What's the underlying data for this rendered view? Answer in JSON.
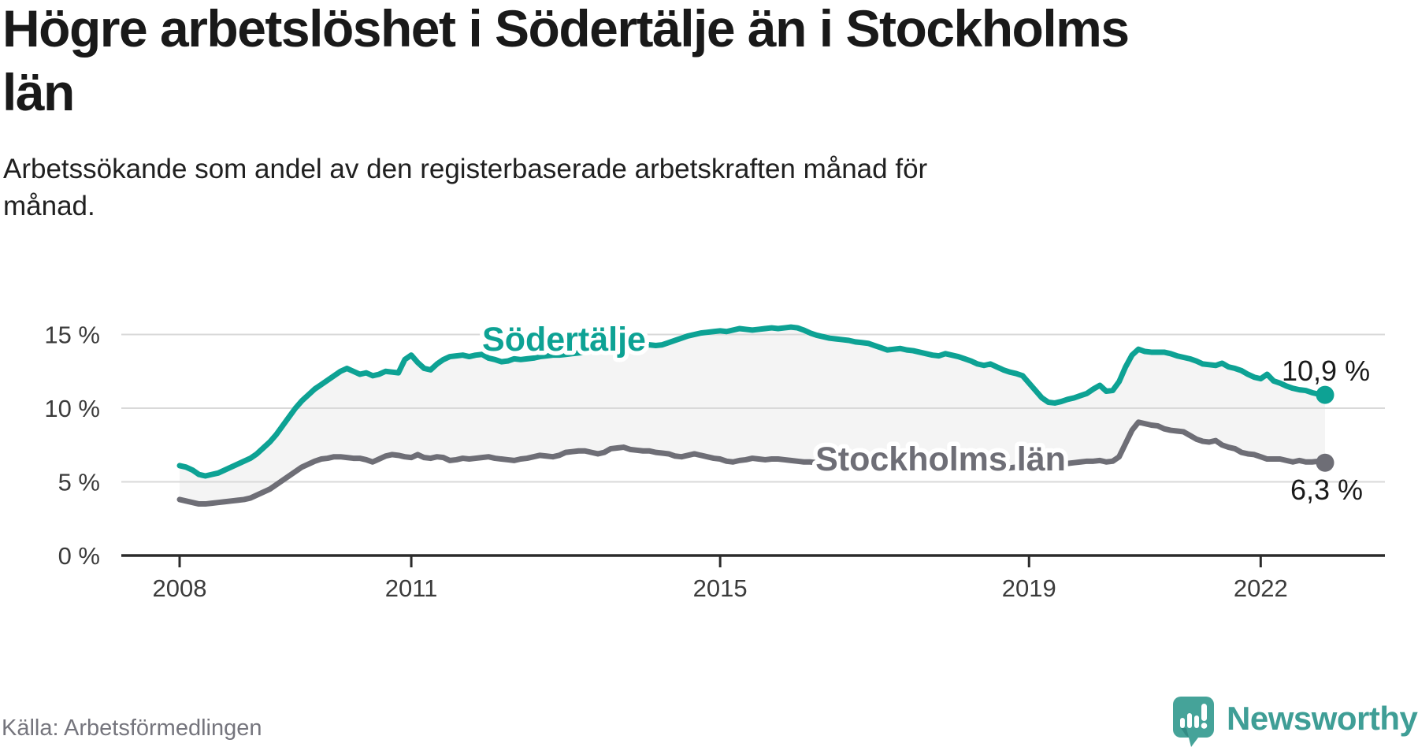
{
  "title": "Högre arbetslöshet i Södertälje än i Stockholms län",
  "title_lines": [
    "Högre arbetslöshet i Södertälje än i Stockholms",
    "län"
  ],
  "subtitle": "Arbetssökande som andel av den registerbaserade arbetskraften månad för månad.",
  "subtitle_lines": [
    "Arbetssökande som andel av den registerbaserade arbetskraften månad för",
    "månad."
  ],
  "source": "Källa: Arbetsförmedlingen",
  "logo": {
    "name": "Newsworthy",
    "icon": "newsworthy-speech-bubble-chart-icon",
    "icon_color": "#45a399",
    "text_color": "#3f9e96"
  },
  "colors": {
    "soder_teal": "#0da294",
    "sthlm_gray": "#6e6e76",
    "fill_between": "#f4f4f4",
    "gridline": "#d9d9d9",
    "axis": "#2b2b2b",
    "tick_text": "#3b3b3b",
    "value_text": "#1a1a1a"
  },
  "chart_data": {
    "type": "line",
    "title": "Högre arbetslöshet i Södertälje än i Stockholms län",
    "xlabel": "",
    "ylabel": "",
    "x_start": "2008-01",
    "x_end": "2022-11",
    "x_ticks": [
      2008,
      2011,
      2015,
      2019,
      2022
    ],
    "y_tick_values": [
      0,
      5,
      10,
      15
    ],
    "y_tick_labels": [
      "0 %",
      "5 %",
      "10 %",
      "15 %"
    ],
    "ylim": [
      0,
      16.8
    ],
    "grid": "horizontal",
    "legend_position": "inline-labels",
    "series": [
      {
        "name": "Södertälje",
        "end_label": "10,9 %",
        "end_value": 10.9,
        "values": [
          6.1,
          6.0,
          5.8,
          5.5,
          5.4,
          5.5,
          5.6,
          5.8,
          6.0,
          6.2,
          6.4,
          6.6,
          6.9,
          7.3,
          7.7,
          8.2,
          8.8,
          9.4,
          10.0,
          10.5,
          10.9,
          11.3,
          11.6,
          11.9,
          12.2,
          12.5,
          12.7,
          12.5,
          12.3,
          12.4,
          12.2,
          12.3,
          12.5,
          12.45,
          12.4,
          13.3,
          13.6,
          13.1,
          12.7,
          12.6,
          13.0,
          13.3,
          13.5,
          13.55,
          13.6,
          13.5,
          13.6,
          13.65,
          13.4,
          13.3,
          13.15,
          13.2,
          13.35,
          13.3,
          13.35,
          13.4,
          13.5,
          13.55,
          13.6,
          13.6,
          13.65,
          13.7,
          13.75,
          13.8,
          13.85,
          13.85,
          13.95,
          14.0,
          14.1,
          14.2,
          14.25,
          14.3,
          14.35,
          14.3,
          14.25,
          14.3,
          14.45,
          14.6,
          14.75,
          14.9,
          15.0,
          15.1,
          15.15,
          15.2,
          15.25,
          15.2,
          15.3,
          15.4,
          15.35,
          15.3,
          15.35,
          15.4,
          15.45,
          15.4,
          15.45,
          15.5,
          15.45,
          15.3,
          15.1,
          14.95,
          14.85,
          14.75,
          14.7,
          14.65,
          14.6,
          14.5,
          14.45,
          14.4,
          14.25,
          14.1,
          13.95,
          14.0,
          14.05,
          13.95,
          13.9,
          13.8,
          13.7,
          13.6,
          13.55,
          13.7,
          13.6,
          13.5,
          13.35,
          13.2,
          13.0,
          12.9,
          13.0,
          12.8,
          12.6,
          12.45,
          12.35,
          12.2,
          11.7,
          11.2,
          10.7,
          10.4,
          10.35,
          10.45,
          10.6,
          10.7,
          10.85,
          11.0,
          11.3,
          11.55,
          11.15,
          11.2,
          11.8,
          12.8,
          13.6,
          14.0,
          13.85,
          13.8,
          13.8,
          13.8,
          13.7,
          13.55,
          13.45,
          13.35,
          13.2,
          13.0,
          12.95,
          12.9,
          13.05,
          12.8,
          12.7,
          12.55,
          12.3,
          12.1,
          12.0,
          12.3,
          11.85,
          11.7,
          11.5,
          11.35,
          11.25,
          11.2,
          11.05,
          10.95,
          10.9
        ]
      },
      {
        "name": "Stockholms län",
        "end_label": "6,3 %",
        "end_value": 6.3,
        "values": [
          3.8,
          3.7,
          3.6,
          3.5,
          3.5,
          3.55,
          3.6,
          3.65,
          3.7,
          3.75,
          3.8,
          3.9,
          4.1,
          4.3,
          4.5,
          4.8,
          5.1,
          5.4,
          5.7,
          6.0,
          6.2,
          6.4,
          6.55,
          6.6,
          6.7,
          6.7,
          6.65,
          6.6,
          6.6,
          6.5,
          6.35,
          6.55,
          6.75,
          6.85,
          6.8,
          6.7,
          6.65,
          6.85,
          6.65,
          6.6,
          6.7,
          6.65,
          6.45,
          6.5,
          6.6,
          6.55,
          6.6,
          6.65,
          6.7,
          6.6,
          6.55,
          6.5,
          6.45,
          6.55,
          6.6,
          6.7,
          6.8,
          6.75,
          6.7,
          6.8,
          7.0,
          7.05,
          7.1,
          7.1,
          7.0,
          6.9,
          7.0,
          7.25,
          7.3,
          7.35,
          7.2,
          7.15,
          7.1,
          7.1,
          7.0,
          6.95,
          6.9,
          6.75,
          6.7,
          6.8,
          6.9,
          6.8,
          6.7,
          6.6,
          6.55,
          6.4,
          6.35,
          6.45,
          6.5,
          6.6,
          6.55,
          6.5,
          6.55,
          6.55,
          6.5,
          6.45,
          6.4,
          6.35,
          6.35,
          6.3,
          6.3,
          6.25,
          6.3,
          6.3,
          6.25,
          6.2,
          6.2,
          6.15,
          6.15,
          6.1,
          6.1,
          6.05,
          6.05,
          6.0,
          6.05,
          6.05,
          6.0,
          6.0,
          5.95,
          5.95,
          5.95,
          5.9,
          5.9,
          5.85,
          5.85,
          5.8,
          5.85,
          5.9,
          5.9,
          5.95,
          6.0,
          6.0,
          6.05,
          6.1,
          6.1,
          6.15,
          6.15,
          6.2,
          6.25,
          6.3,
          6.35,
          6.4,
          6.4,
          6.45,
          6.35,
          6.4,
          6.7,
          7.6,
          8.5,
          9.05,
          8.95,
          8.85,
          8.8,
          8.6,
          8.5,
          8.45,
          8.4,
          8.15,
          7.9,
          7.75,
          7.7,
          7.8,
          7.5,
          7.35,
          7.25,
          7.0,
          6.9,
          6.85,
          6.7,
          6.55,
          6.55,
          6.55,
          6.45,
          6.35,
          6.45,
          6.35,
          6.35,
          6.4,
          6.3
        ]
      }
    ]
  }
}
